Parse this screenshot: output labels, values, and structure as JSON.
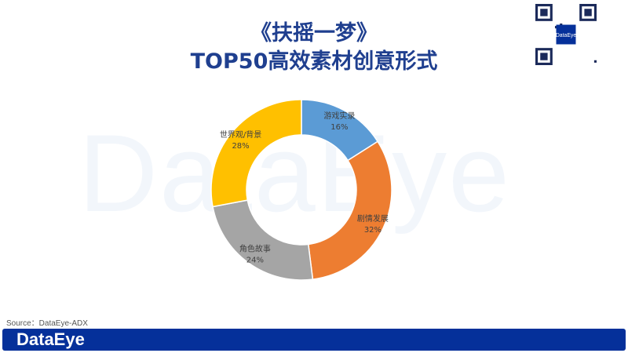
{
  "title_line1": "《扶摇一梦》",
  "title_line2": "TOP50高效素材创意形式",
  "watermark": "DataEye",
  "source": "Source：DataEye-ADX",
  "footer_logo": "DataEye",
  "qr_logo": "DataEye",
  "chart_data": {
    "type": "pie",
    "donut": true,
    "categories": [
      "游戏实录",
      "剧情发展",
      "角色故事",
      "世界观/背景"
    ],
    "values": [
      16,
      32,
      24,
      28
    ],
    "labels": [
      "16%",
      "32%",
      "24%",
      "28%"
    ],
    "colors": [
      "#5b9bd5",
      "#ed7d31",
      "#a5a5a5",
      "#ffc000"
    ],
    "start": "top",
    "direction": "clockwise"
  }
}
